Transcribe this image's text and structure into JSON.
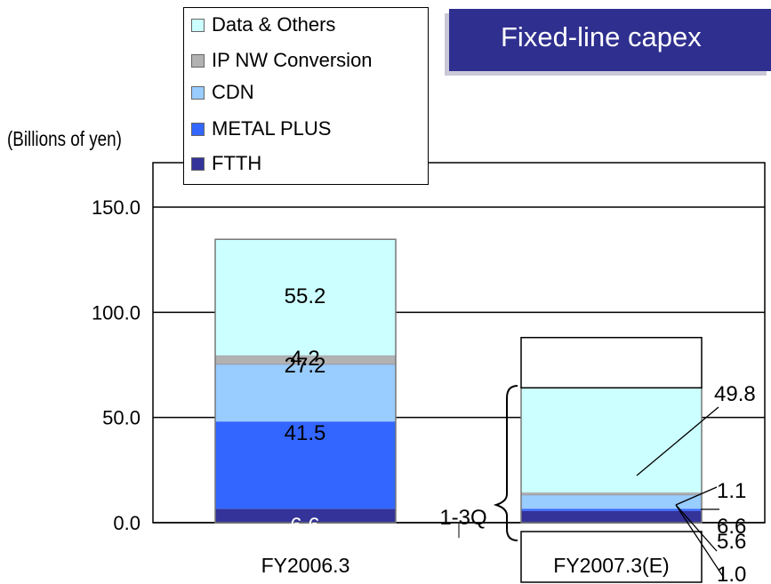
{
  "title": "Fixed-line capex",
  "unit_label": "(Billions of yen)",
  "legend": [
    {
      "label": "Data & Others",
      "color": "#ccffff"
    },
    {
      "label": "IP NW Conversion",
      "color": "#b2b2b2"
    },
    {
      "label": "CDN",
      "color": "#99ccff"
    },
    {
      "label": "METAL PLUS",
      "color": "#3366ff"
    },
    {
      "label": "FTTH",
      "color": "#333399"
    }
  ],
  "chart_data": {
    "type": "bar",
    "stacked": true,
    "ylim": [
      0,
      150
    ],
    "yticks": [
      "0.0",
      "50.0",
      "100.0",
      "150.0"
    ],
    "grid": true,
    "legend_position": "top",
    "categories": [
      "FY2006.3",
      "FY2007.3(E)"
    ],
    "series": [
      {
        "name": "FTTH",
        "color": "#333399",
        "values": [
          6.6,
          5.6
        ]
      },
      {
        "name": "METAL PLUS",
        "color": "#3366ff",
        "values": [
          41.5,
          1.0
        ]
      },
      {
        "name": "CDN",
        "color": "#99ccff",
        "values": [
          27.2,
          6.6
        ]
      },
      {
        "name": "IP NW Conversion",
        "color": "#b2b2b2",
        "values": [
          4.2,
          1.1
        ]
      },
      {
        "name": "Data & Others",
        "color": "#ccffff",
        "values": [
          55.2,
          49.8
        ]
      }
    ],
    "data_labels": {
      "FY2006.3": [
        "6.6",
        "41.5",
        "27.2",
        "4.2",
        "55.2"
      ],
      "FY2007.3(E)": [
        "5.6",
        "1.0",
        "6.6",
        "1.1",
        "49.8"
      ]
    },
    "full_year_outline_total": 88.0,
    "annotation": "1-3Q"
  }
}
